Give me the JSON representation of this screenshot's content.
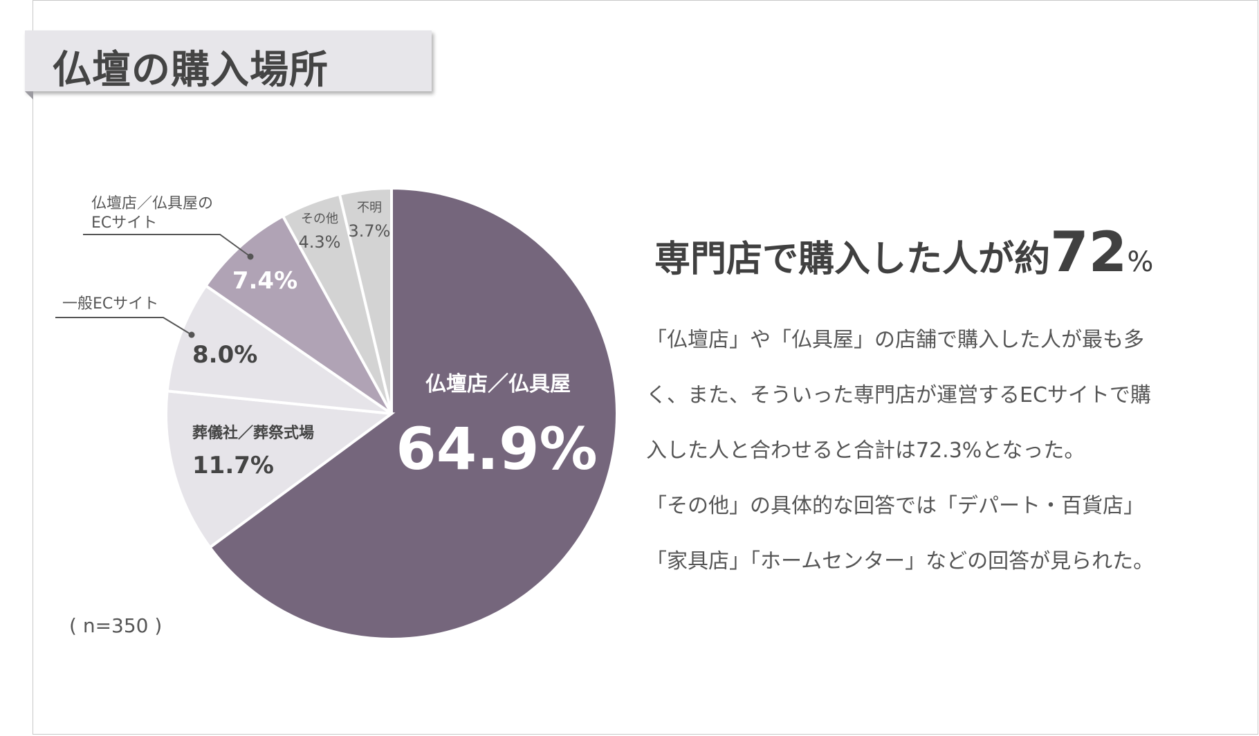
{
  "page": {
    "title": "仏壇の購入場所",
    "sample_size": "( n=350 )"
  },
  "summary": {
    "headline_pre": "専門店で購入した人が約",
    "headline_num": "72",
    "headline_unit": "%",
    "paragraph_lines": [
      "「仏壇店」や「仏具屋」の店舗で購入した人が最も多",
      "く、また、そういった専門店が運営するECサイトで購",
      "入した人と合わせると合計は72.3%となった。",
      "「その他」の具体的な回答では「デパート・百貨店」",
      "「家具店」「ホームセンター」などの回答が見られた。"
    ]
  },
  "chart_data": {
    "type": "pie",
    "title": "仏壇の購入場所",
    "start": "12 o'clock, clockwise",
    "slices": [
      {
        "name": "仏壇店／仏具屋",
        "value": 64.9,
        "label": "64.9%",
        "color": "#75667c"
      },
      {
        "name": "葬儀社／葬祭式場",
        "value": 11.7,
        "label": "11.7%",
        "color": "#e6e4e9"
      },
      {
        "name": "一般ECサイト",
        "value": 8.0,
        "label": "8.0%",
        "color": "#e6e4e9"
      },
      {
        "name": "仏壇店／仏具屋のECサイト",
        "name_lines": [
          "仏壇店／仏具屋の",
          "ECサイト"
        ],
        "value": 7.4,
        "label": "7.4%",
        "color": "#b0a3b5"
      },
      {
        "name": "その他",
        "value": 4.3,
        "label": "4.3%",
        "color": "#d3d3d3"
      },
      {
        "name": "不明",
        "value": 3.7,
        "label": "3.7%",
        "color": "#d3d3d3"
      }
    ],
    "legend": "none (labels on/around slices)"
  }
}
